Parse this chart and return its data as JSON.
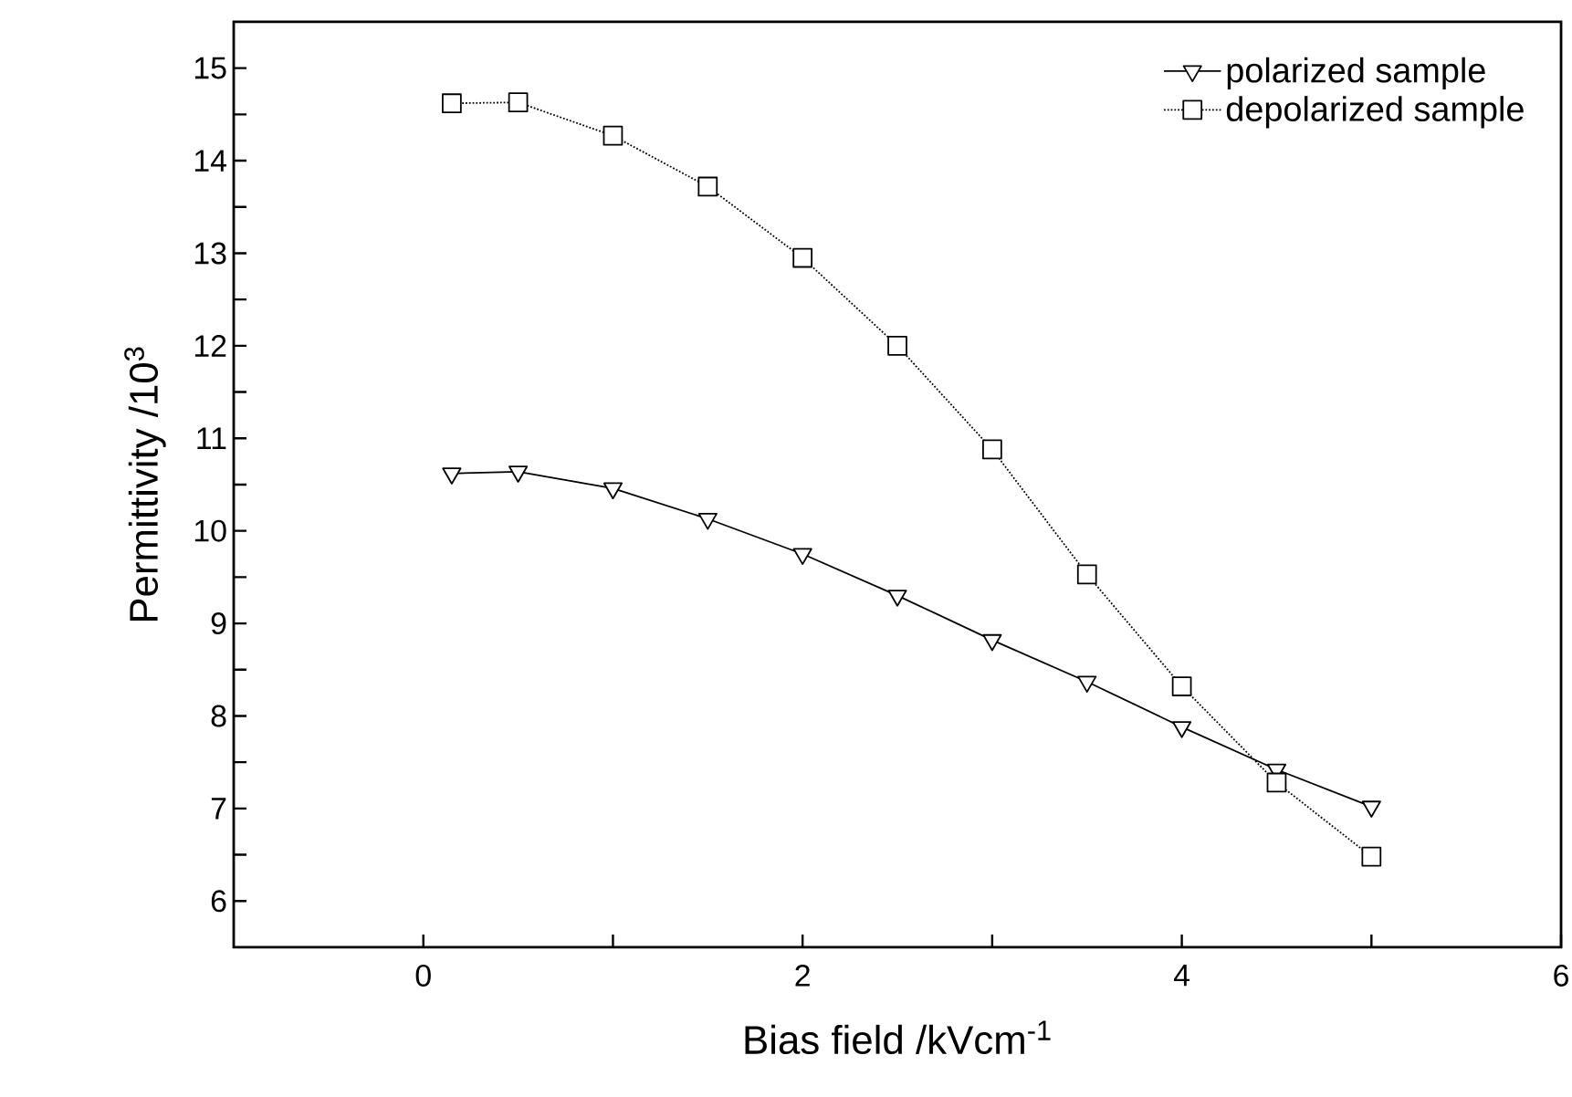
{
  "chart_data": {
    "type": "line",
    "xlabel": "Bias field /kVcm$^{-1}$",
    "ylabel": "Permittivity /10$^{3}$",
    "xlim": [
      -1,
      6
    ],
    "ylim": [
      5.5,
      15.5
    ],
    "xticks": [
      0,
      {
        "value": 1,
        "label": null
      },
      2,
      {
        "value": 3,
        "label": null
      },
      4,
      {
        "value": 5,
        "label": null
      },
      6
    ],
    "yticks": [
      6,
      {
        "value": 6.5,
        "label": null
      },
      7,
      {
        "value": 7.5,
        "label": null
      },
      8,
      {
        "value": 8.5,
        "label": null
      },
      9,
      {
        "value": 9.5,
        "label": null
      },
      10,
      {
        "value": 10.5,
        "label": null
      },
      11,
      {
        "value": 11.5,
        "label": null
      },
      12,
      {
        "value": 12.5,
        "label": null
      },
      13,
      {
        "value": 13.5,
        "label": null
      },
      14,
      {
        "value": 14.5,
        "label": null
      },
      15
    ],
    "x": [
      0.15,
      0.5,
      1,
      1.5,
      2,
      2.5,
      3,
      3.5,
      4,
      4.5,
      5
    ],
    "grid": false,
    "legend": "top right",
    "series": [
      {
        "name": "polarized sample",
        "color": "#000000",
        "marker": "triangle",
        "line_style": "solid",
        "values": [
          10.62,
          10.64,
          10.46,
          10.13,
          9.75,
          9.3,
          8.82,
          8.37,
          7.88,
          7.42,
          7.02
        ]
      },
      {
        "name": "depolarized sample",
        "color": "#000000",
        "marker": "square",
        "line_style": "dotted",
        "values": [
          14.62,
          14.63,
          14.27,
          13.72,
          12.95,
          12.0,
          10.88,
          9.53,
          8.32,
          7.28,
          6.48
        ]
      }
    ]
  }
}
